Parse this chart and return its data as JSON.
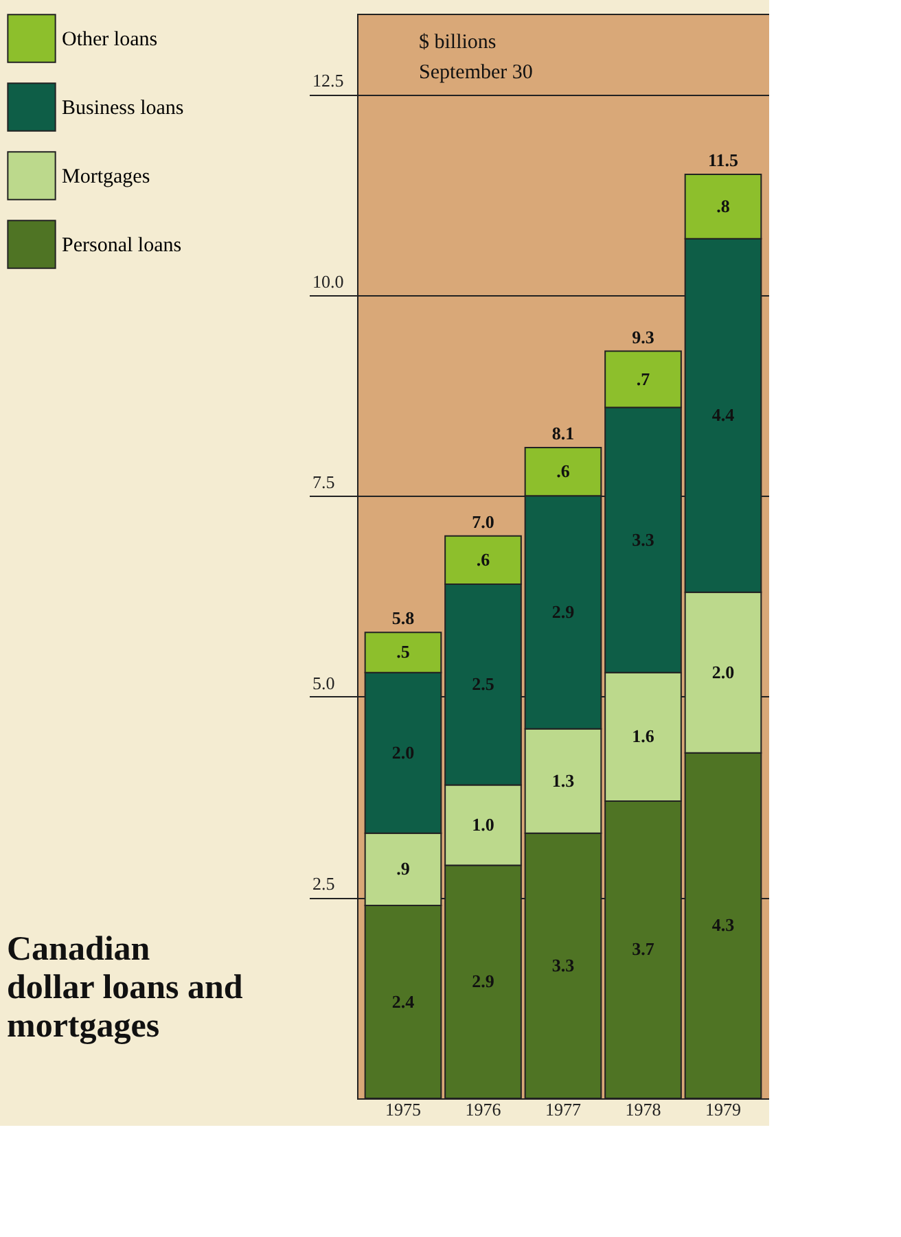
{
  "chart_data": {
    "type": "bar",
    "stacked": true,
    "title": "Canadian dollar loans and mortgages",
    "categories": [
      "1975",
      "1976",
      "1977",
      "1978",
      "1979"
    ],
    "series": [
      {
        "name": "Personal loans",
        "color": "#4f7424",
        "values": [
          2.4,
          2.9,
          3.3,
          3.7,
          4.3
        ],
        "value_labels": [
          "2.4",
          "2.9",
          "3.3",
          "3.7",
          "4.3"
        ]
      },
      {
        "name": "Mortgages",
        "color": "#bcd98c",
        "values": [
          0.9,
          1.0,
          1.3,
          1.6,
          2.0
        ],
        "value_labels": [
          ".9",
          "1.0",
          "1.3",
          "1.6",
          "2.0"
        ]
      },
      {
        "name": "Business loans",
        "color": "#0e5e47",
        "values": [
          2.0,
          2.5,
          2.9,
          3.3,
          4.4
        ],
        "value_labels": [
          "2.0",
          "2.5",
          "2.9",
          "3.3",
          "4.4"
        ]
      },
      {
        "name": "Other loans",
        "color": "#8dbf2c",
        "values": [
          0.5,
          0.6,
          0.6,
          0.7,
          0.8
        ],
        "value_labels": [
          ".5",
          ".6",
          ".6",
          ".7",
          ".8"
        ]
      }
    ],
    "totals": [
      "5.8",
      "7.0",
      "8.1",
      "9.3",
      "11.5"
    ],
    "ylim": [
      0,
      13.5
    ],
    "yticks": [
      2.5,
      {
        "value": 5,
        "label": "5.0"
      },
      7.5,
      {
        "value": 10,
        "label": "10.0"
      },
      12.5
    ],
    "grid": "y",
    "legend": "top left",
    "annotations": [
      "$ billions",
      "September 30"
    ]
  }
}
